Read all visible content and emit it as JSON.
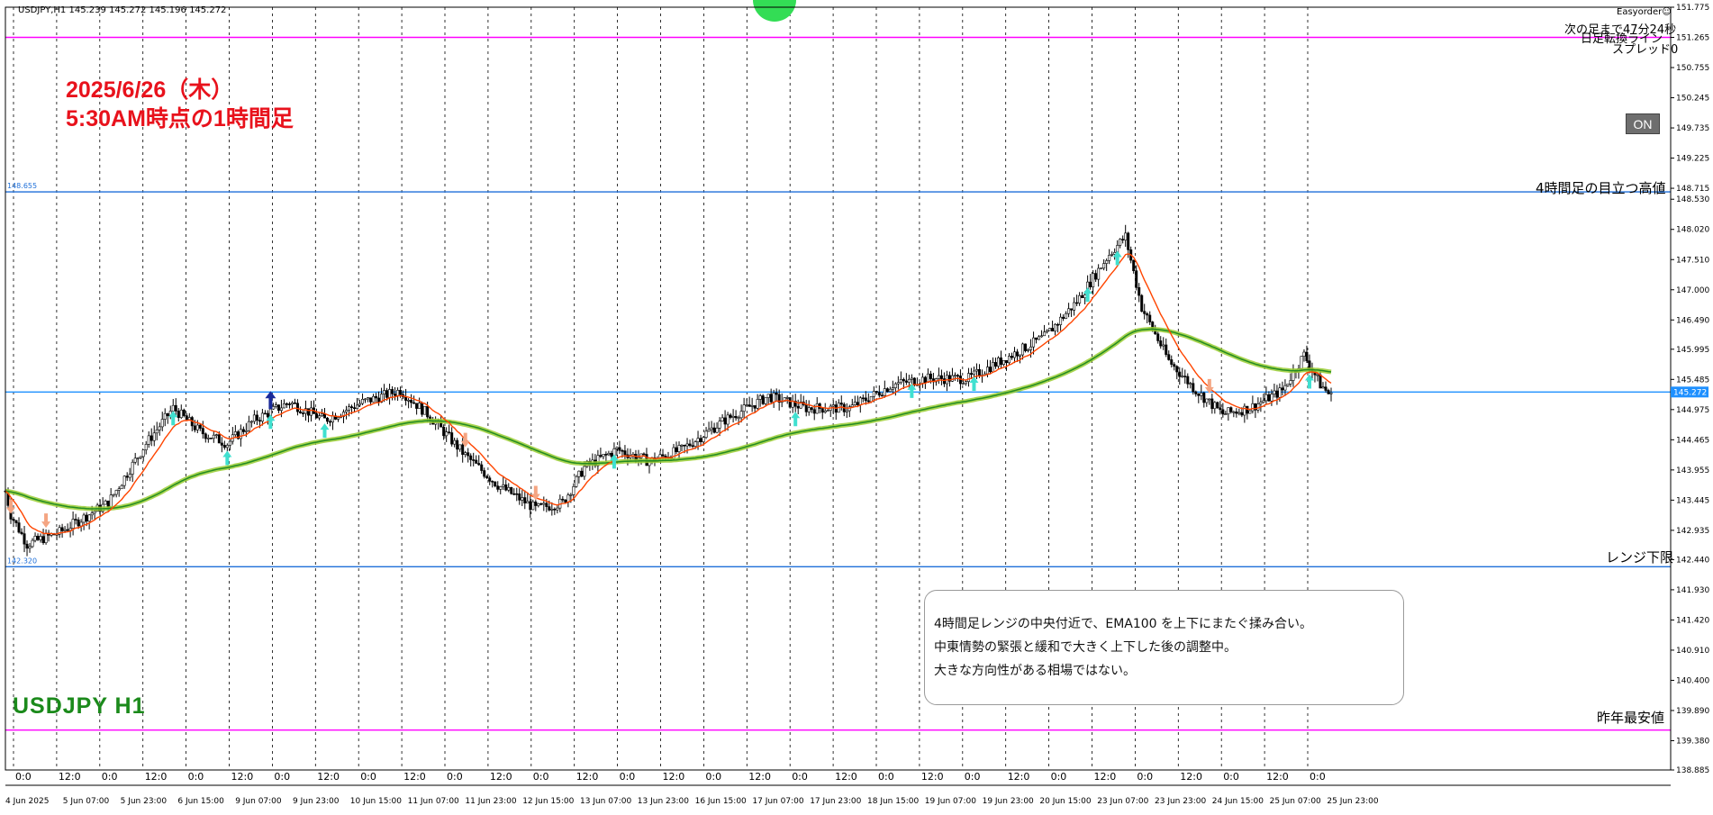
{
  "header": {
    "ohlc_label": "USDJPY,H1  145.239 145.272 145.196 145.272",
    "easyorder_label": "Easyorder☺",
    "countdown_label": "次の足まで47分24秒",
    "daily_switch_label": "日足転換ライン",
    "spread_label": "スプレッド0",
    "on_button_label": "ON"
  },
  "annotations": {
    "headline_date": "2025/6/26（木）",
    "headline_time": "5:30AM時点の1時間足",
    "symbol_title": "USDJPY H1",
    "label_4h_high": "4時間足の目立つ高値",
    "label_range_low": "レンジ下限",
    "label_last_year_low": "昨年最安値",
    "note_lines": [
      "4時間足レンジの中央付近で、EMA100 を上下にまたぐ揉み合い。",
      "中東情勢の緊張と緩和で大きく上下した後の調整中。",
      "大きな方向性がある相場ではない。"
    ]
  },
  "chart_data": {
    "type": "candlestick",
    "symbol": "USDJPY",
    "timeframe": "H1",
    "ylim": [
      138.885,
      151.775
    ],
    "yticks": [
      151.775,
      151.265,
      150.755,
      150.245,
      149.735,
      149.225,
      148.715,
      148.53,
      148.02,
      147.51,
      147.0,
      146.49,
      145.995,
      145.485,
      144.975,
      144.465,
      143.955,
      143.445,
      142.935,
      142.44,
      141.93,
      141.42,
      140.91,
      140.4,
      139.89,
      139.38,
      138.885
    ],
    "current_price": 145.272,
    "hlines": [
      {
        "price": 151.265,
        "color": "#ff00ff",
        "label": ""
      },
      {
        "price": 148.655,
        "color": "#1e6fd9",
        "label": "148.655"
      },
      {
        "price": 145.272,
        "color": "#1e90ff",
        "label": ""
      },
      {
        "price": 142.32,
        "color": "#1e6fd9",
        "label": "142.320"
      },
      {
        "price": 139.56,
        "color": "#ff00ff",
        "label": ""
      }
    ],
    "x_tick_labels": [
      "0:0",
      "12:0",
      "0:0",
      "12:0",
      "0:0",
      "12:0",
      "0:0",
      "12:0",
      "0:0",
      "12:0",
      "0:0",
      "12:0",
      "0:0",
      "12:0",
      "0:0",
      "12:0",
      "0:0",
      "12:0",
      "0:0",
      "12:0",
      "0:0",
      "12:0",
      "0:0",
      "12:0",
      "0:0",
      "12:0",
      "0:0",
      "12:0",
      "0:0",
      "12:0",
      "0:0"
    ],
    "x_date_labels": [
      "4 Jun 2025",
      "5 Jun 07:00",
      "5 Jun 23:00",
      "6 Jun 15:00",
      "9 Jun 07:00",
      "9 Jun 23:00",
      "10 Jun 15:00",
      "11 Jun 07:00",
      "11 Jun 23:00",
      "12 Jun 15:00",
      "13 Jun 07:00",
      "13 Jun 23:00",
      "16 Jun 15:00",
      "17 Jun 07:00",
      "17 Jun 23:00",
      "18 Jun 15:00",
      "19 Jun 07:00",
      "19 Jun 23:00",
      "20 Jun 15:00",
      "23 Jun 07:00",
      "23 Jun 23:00",
      "24 Jun 15:00",
      "25 Jun 07:00",
      "25 Jun 23:00"
    ],
    "price_path": [
      [
        0,
        143.6
      ],
      [
        2,
        143.2
      ],
      [
        8,
        142.7
      ],
      [
        20,
        142.9
      ],
      [
        38,
        143.4
      ],
      [
        52,
        144.4
      ],
      [
        62,
        145.0
      ],
      [
        72,
        144.6
      ],
      [
        82,
        144.4
      ],
      [
        92,
        144.8
      ],
      [
        105,
        145.1
      ],
      [
        118,
        144.8
      ],
      [
        132,
        145.1
      ],
      [
        146,
        145.3
      ],
      [
        156,
        144.9
      ],
      [
        170,
        144.2
      ],
      [
        182,
        143.7
      ],
      [
        196,
        143.3
      ],
      [
        206,
        143.4
      ],
      [
        214,
        144.0
      ],
      [
        226,
        144.3
      ],
      [
        238,
        144.1
      ],
      [
        250,
        144.3
      ],
      [
        266,
        144.8
      ],
      [
        282,
        145.2
      ],
      [
        296,
        145.0
      ],
      [
        312,
        145.0
      ],
      [
        328,
        145.4
      ],
      [
        340,
        145.5
      ],
      [
        356,
        145.5
      ],
      [
        368,
        145.8
      ],
      [
        384,
        146.2
      ],
      [
        396,
        146.8
      ],
      [
        408,
        147.6
      ],
      [
        414,
        147.9
      ],
      [
        420,
        146.7
      ],
      [
        430,
        145.8
      ],
      [
        440,
        145.3
      ],
      [
        450,
        144.9
      ],
      [
        460,
        145.0
      ],
      [
        472,
        145.3
      ],
      [
        480,
        145.9
      ],
      [
        486,
        145.4
      ],
      [
        490,
        145.2
      ]
    ],
    "ema_fast_color": "#ff4500",
    "ema_slow_color": "#228b22",
    "ema_slow_glow": "#9acd32",
    "buy_signal_color": "#40e0d0",
    "sell_signal_color": "#f4a582"
  }
}
